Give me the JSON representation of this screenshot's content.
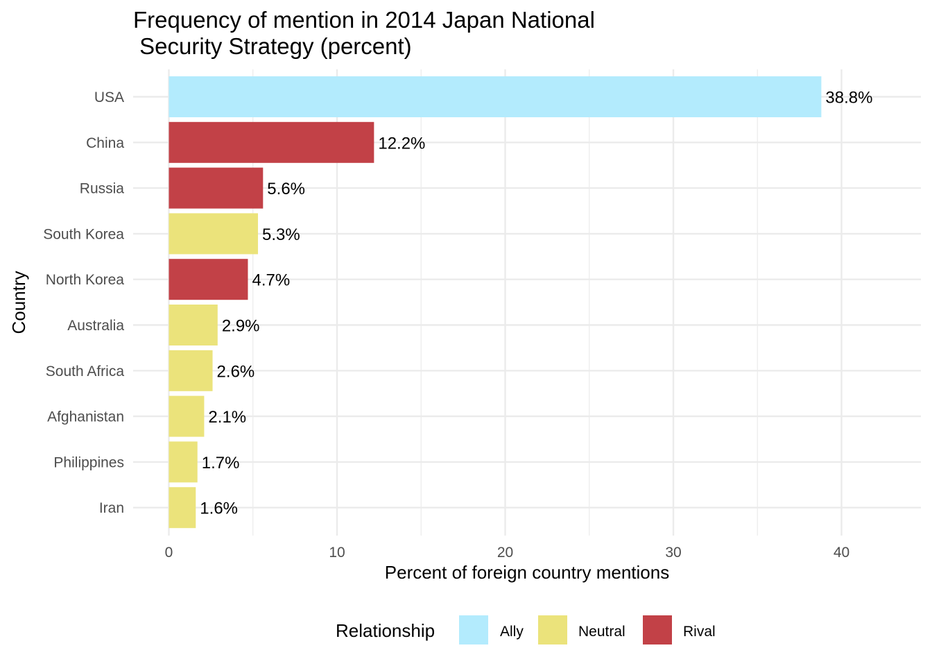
{
  "chart_data": {
    "type": "bar",
    "orientation": "horizontal",
    "title_lines": [
      "Frequency of mention in 2014 Japan National",
      " Security Strategy (percent)"
    ],
    "xlabel": "Percent of foreign country mentions",
    "ylabel": "Country",
    "xlim": [
      0,
      44
    ],
    "xticks": [
      0,
      10,
      20,
      30,
      40
    ],
    "grid": true,
    "categories": [
      "USA",
      "China",
      "Russia",
      "South Korea",
      "North Korea",
      "Australia",
      "South Africa",
      "Afghanistan",
      "Philippines",
      "Iran"
    ],
    "values": [
      38.8,
      12.2,
      5.6,
      5.3,
      4.7,
      2.9,
      2.6,
      2.1,
      1.7,
      1.6
    ],
    "value_labels": [
      "38.8%",
      "12.2%",
      "5.6%",
      "5.3%",
      "4.7%",
      "2.9%",
      "2.6%",
      "2.1%",
      "1.7%",
      "1.6%"
    ],
    "relationship": [
      "Ally",
      "Rival",
      "Rival",
      "Neutral",
      "Rival",
      "Neutral",
      "Neutral",
      "Neutral",
      "Neutral",
      "Neutral"
    ],
    "legend": {
      "title": "Relationship",
      "placement": "bottom",
      "entries": [
        {
          "label": "Ally",
          "color": "#b3ebfd"
        },
        {
          "label": "Neutral",
          "color": "#ebe37b"
        },
        {
          "label": "Rival",
          "color": "#c24147"
        }
      ]
    }
  }
}
